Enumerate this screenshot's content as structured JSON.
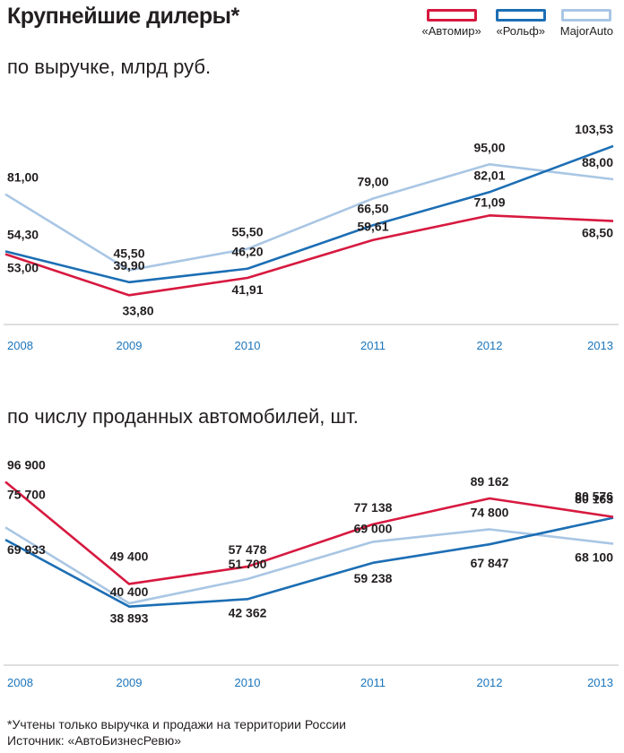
{
  "title": "Крупнейшие дилеры*",
  "legend": [
    {
      "name": "«Автомир»",
      "color": "#d7193f"
    },
    {
      "name": "«Рольф»",
      "color": "#1c6eb4"
    },
    {
      "name": "MajorAuto",
      "color": "#a9c6e4"
    }
  ],
  "footnote": "*Учтены только выручка и продажи на территории России",
  "source": "Источник: «АвтоБизнесРевю»",
  "chart_data": [
    {
      "type": "line",
      "title": "по выручке, млрд руб.",
      "categories": [
        "2008",
        "2009",
        "2010",
        "2011",
        "2012",
        "2013"
      ],
      "series": [
        {
          "name": "«Автомир»",
          "color": "#d7193f",
          "values": [
            53.0,
            33.8,
            41.91,
            59.61,
            71.09,
            68.5
          ],
          "labels": [
            "53,00",
            "33,80",
            "41,91",
            "59,61",
            "71,09",
            "68,50"
          ]
        },
        {
          "name": "«Рольф»",
          "color": "#1c6eb4",
          "values": [
            54.3,
            39.9,
            46.2,
            66.5,
            82.01,
            103.53
          ],
          "labels": [
            "54,30",
            "39,90",
            "46,20",
            "66,50",
            "82,01",
            "103,53"
          ]
        },
        {
          "name": "MajorAuto",
          "color": "#a9c6e4",
          "values": [
            81.0,
            45.5,
            55.5,
            79.0,
            95.0,
            88.0
          ],
          "labels": [
            "81,00",
            "45,50",
            "55,50",
            "79,00",
            "95,00",
            "88,00"
          ]
        }
      ]
    },
    {
      "type": "line",
      "title": "по числу проданных автомобилей, шт.",
      "categories": [
        "2008",
        "2009",
        "2010",
        "2011",
        "2012",
        "2013"
      ],
      "series": [
        {
          "name": "«Автомир»",
          "color": "#d7193f",
          "values": [
            96900,
            49400,
            57478,
            77138,
            89162,
            80576
          ],
          "labels": [
            "96 900",
            "49 400",
            "57 478",
            "77 138",
            "89 162",
            "80 576"
          ]
        },
        {
          "name": "«Рольф»",
          "color": "#1c6eb4",
          "values": [
            69933,
            38893,
            42362,
            59238,
            67847,
            80163
          ],
          "labels": [
            "69 933",
            "38 893",
            "42 362",
            "59 238",
            "67 847",
            "80 163"
          ]
        },
        {
          "name": "MajorAuto",
          "color": "#a9c6e4",
          "values": [
            75700,
            40400,
            51700,
            69000,
            74800,
            68100
          ],
          "labels": [
            "75 700",
            "40 400",
            "51 700",
            "69 000",
            "74 800",
            "68 100"
          ]
        }
      ]
    }
  ]
}
